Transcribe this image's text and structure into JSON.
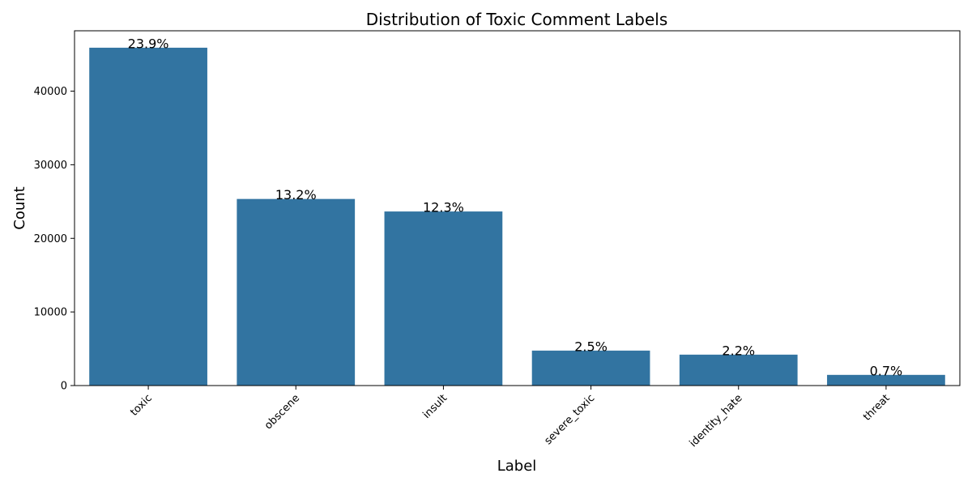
{
  "chart_data": {
    "type": "bar",
    "title": "Distribution of Toxic Comment Labels",
    "xlabel": "Label",
    "ylabel": "Count",
    "categories": [
      "toxic",
      "obscene",
      "insult",
      "severe_toxic",
      "identity_hate",
      "threat"
    ],
    "values": [
      45900,
      25350,
      23650,
      4750,
      4200,
      1450
    ],
    "data_labels": [
      "23.9%",
      "13.2%",
      "12.3%",
      "2.5%",
      "2.2%",
      "0.7%"
    ],
    "yticks": [
      0,
      10000,
      20000,
      30000,
      40000
    ],
    "ylim": [
      0,
      48200
    ],
    "grid": false,
    "legend": "none",
    "bar_color": "#3274a1",
    "xtick_rotation_deg": 45
  }
}
